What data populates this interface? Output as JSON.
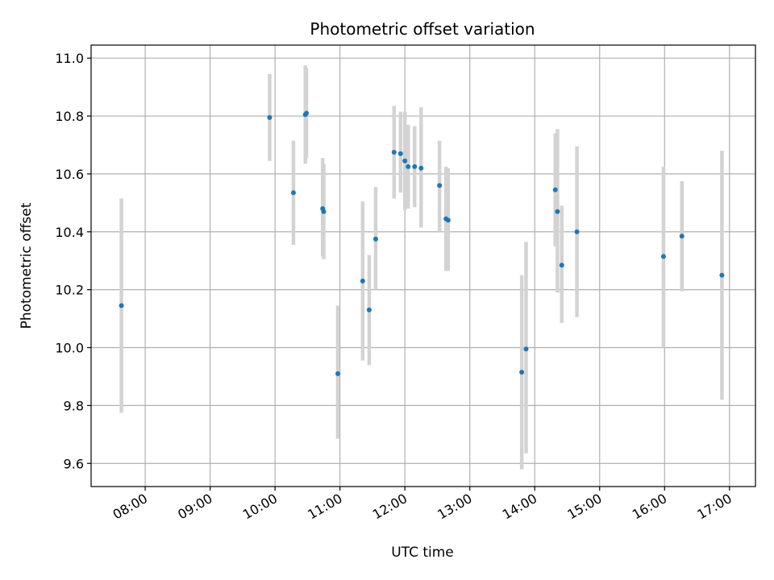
{
  "chart_data": {
    "type": "scatter",
    "title": "Photometric offset variation",
    "xlabel": "UTC time",
    "ylabel": "Photometric offset",
    "x_format": "HH:MM",
    "xlim": [
      "07:10",
      "17:24"
    ],
    "ylim": [
      9.52,
      11.045
    ],
    "x_ticks": [
      "08:00",
      "09:00",
      "10:00",
      "11:00",
      "12:00",
      "13:00",
      "14:00",
      "15:00",
      "16:00",
      "17:00"
    ],
    "y_ticks": [
      9.6,
      9.8,
      10.0,
      10.2,
      10.4,
      10.6,
      10.8,
      11.0
    ],
    "y_tick_labels": [
      "9.6",
      "9.8",
      "10.0",
      "10.2",
      "10.4",
      "10.6",
      "10.8",
      "11.0"
    ],
    "grid": true,
    "marker_color": "#1f77b4",
    "errorbar_color": "#d3d3d3",
    "points": [
      {
        "x": "07:38",
        "y": 10.145,
        "y_low": 9.775,
        "y_high": 10.515
      },
      {
        "x": "09:55",
        "y": 10.795,
        "y_low": 10.645,
        "y_high": 10.945
      },
      {
        "x": "10:17",
        "y": 10.535,
        "y_low": 10.355,
        "y_high": 10.715
      },
      {
        "x": "10:28",
        "y": 10.805,
        "y_low": 10.635,
        "y_high": 10.975
      },
      {
        "x": "10:29",
        "y": 10.81,
        "y_low": 10.655,
        "y_high": 10.965
      },
      {
        "x": "10:44",
        "y": 10.48,
        "y_low": 10.315,
        "y_high": 10.655
      },
      {
        "x": "10:45",
        "y": 10.47,
        "y_low": 10.305,
        "y_high": 10.635
      },
      {
        "x": "10:58",
        "y": 9.91,
        "y_low": 9.685,
        "y_high": 10.145
      },
      {
        "x": "11:21",
        "y": 10.23,
        "y_low": 9.955,
        "y_high": 10.505
      },
      {
        "x": "11:27",
        "y": 10.13,
        "y_low": 9.94,
        "y_high": 10.32
      },
      {
        "x": "11:33",
        "y": 10.375,
        "y_low": 10.2,
        "y_high": 10.555
      },
      {
        "x": "11:50",
        "y": 10.675,
        "y_low": 10.515,
        "y_high": 10.835
      },
      {
        "x": "11:56",
        "y": 10.67,
        "y_low": 10.535,
        "y_high": 10.815
      },
      {
        "x": "12:00",
        "y": 10.645,
        "y_low": 10.475,
        "y_high": 10.815
      },
      {
        "x": "12:03",
        "y": 10.625,
        "y_low": 10.48,
        "y_high": 10.77
      },
      {
        "x": "12:09",
        "y": 10.625,
        "y_low": 10.485,
        "y_high": 10.765
      },
      {
        "x": "12:15",
        "y": 10.62,
        "y_low": 10.415,
        "y_high": 10.83
      },
      {
        "x": "12:32",
        "y": 10.56,
        "y_low": 10.4,
        "y_high": 10.715
      },
      {
        "x": "12:38",
        "y": 10.445,
        "y_low": 10.265,
        "y_high": 10.625
      },
      {
        "x": "12:40",
        "y": 10.44,
        "y_low": 10.265,
        "y_high": 10.62
      },
      {
        "x": "13:48",
        "y": 9.915,
        "y_low": 9.58,
        "y_high": 10.25
      },
      {
        "x": "13:52",
        "y": 9.995,
        "y_low": 9.635,
        "y_high": 10.365
      },
      {
        "x": "14:19",
        "y": 10.545,
        "y_low": 10.35,
        "y_high": 10.74
      },
      {
        "x": "14:21",
        "y": 10.47,
        "y_low": 10.19,
        "y_high": 10.755
      },
      {
        "x": "14:25",
        "y": 10.285,
        "y_low": 10.085,
        "y_high": 10.49
      },
      {
        "x": "14:39",
        "y": 10.4,
        "y_low": 10.105,
        "y_high": 10.695
      },
      {
        "x": "15:59",
        "y": 10.315,
        "y_low": 10.0,
        "y_high": 10.625
      },
      {
        "x": "16:16",
        "y": 10.385,
        "y_low": 10.195,
        "y_high": 10.575
      },
      {
        "x": "16:53",
        "y": 10.25,
        "y_low": 9.82,
        "y_high": 10.68
      }
    ]
  }
}
